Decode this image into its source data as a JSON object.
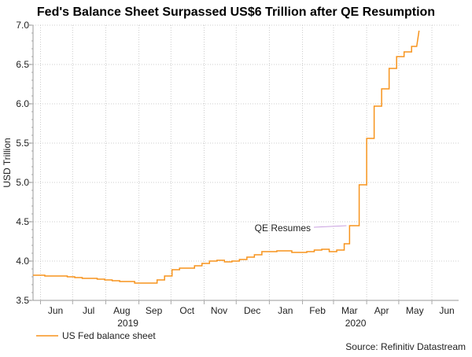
{
  "chart_data": {
    "type": "line",
    "title": "Fed's Balance Sheet Surpassed US$6 Trillion after QE Resumption",
    "ylabel": "USD Trillion",
    "xlabel": "",
    "ylim": [
      3.5,
      7.0
    ],
    "yticks": [
      "3.5",
      "4.0",
      "4.5",
      "5.0",
      "5.5",
      "6.0",
      "6.5",
      "7.0"
    ],
    "xlim": [
      "2019-05-25",
      "2020-06-26"
    ],
    "month_ticks": [
      "2019-06-01",
      "2019-07-01",
      "2019-08-01",
      "2019-09-01",
      "2019-10-01",
      "2019-11-01",
      "2019-12-01",
      "2020-01-01",
      "2020-02-01",
      "2020-03-01",
      "2020-04-01",
      "2020-05-01",
      "2020-06-01"
    ],
    "month_labels": [
      {
        "label": "Jun",
        "date": "2019-06-15"
      },
      {
        "label": "Jul",
        "date": "2019-07-16"
      },
      {
        "label": "Aug",
        "date": "2019-08-16"
      },
      {
        "label": "Sep",
        "date": "2019-09-15"
      },
      {
        "label": "Oct",
        "date": "2019-10-16"
      },
      {
        "label": "Nov",
        "date": "2019-11-15"
      },
      {
        "label": "Dec",
        "date": "2019-12-16"
      },
      {
        "label": "Jan",
        "date": "2020-01-16"
      },
      {
        "label": "Feb",
        "date": "2020-02-15"
      },
      {
        "label": "Mar",
        "date": "2020-03-16"
      },
      {
        "label": "Apr",
        "date": "2020-04-15"
      },
      {
        "label": "May",
        "date": "2020-05-16"
      },
      {
        "label": "Jun",
        "date": "2020-06-15"
      }
    ],
    "year_labels": [
      {
        "label": "2019",
        "date": "2019-09-01"
      },
      {
        "label": "2020",
        "date": "2020-04-01"
      }
    ],
    "grid": true,
    "series": [
      {
        "name": "US Fed balance sheet",
        "color": "#f7941d",
        "x": [
          "2019-05-22",
          "2019-05-29",
          "2019-06-05",
          "2019-06-12",
          "2019-06-19",
          "2019-06-26",
          "2019-07-03",
          "2019-07-10",
          "2019-07-17",
          "2019-07-24",
          "2019-07-31",
          "2019-08-07",
          "2019-08-14",
          "2019-08-21",
          "2019-08-28",
          "2019-09-04",
          "2019-09-11",
          "2019-09-18",
          "2019-09-25",
          "2019-10-02",
          "2019-10-09",
          "2019-10-16",
          "2019-10-23",
          "2019-10-30",
          "2019-11-06",
          "2019-11-13",
          "2019-11-20",
          "2019-11-27",
          "2019-12-04",
          "2019-12-11",
          "2019-12-18",
          "2019-12-25",
          "2020-01-01",
          "2020-01-08",
          "2020-01-15",
          "2020-01-22",
          "2020-01-29",
          "2020-02-05",
          "2020-02-12",
          "2020-02-19",
          "2020-02-26",
          "2020-03-04",
          "2020-03-11",
          "2020-03-16",
          "2020-03-25",
          "2020-04-01",
          "2020-04-08",
          "2020-04-15",
          "2020-04-22",
          "2020-04-29",
          "2020-05-06",
          "2020-05-13",
          "2020-05-20"
        ],
        "values": [
          3.82,
          3.82,
          3.81,
          3.81,
          3.81,
          3.8,
          3.79,
          3.78,
          3.78,
          3.77,
          3.76,
          3.75,
          3.74,
          3.74,
          3.72,
          3.72,
          3.72,
          3.76,
          3.81,
          3.89,
          3.91,
          3.91,
          3.94,
          3.97,
          4.0,
          4.01,
          3.99,
          4.0,
          4.02,
          4.05,
          4.08,
          4.12,
          4.12,
          4.13,
          4.13,
          4.11,
          4.11,
          4.12,
          4.14,
          4.15,
          4.12,
          4.14,
          4.22,
          4.45,
          4.97,
          5.56,
          5.97,
          6.19,
          6.45,
          6.6,
          6.66,
          6.73,
          6.93
        ]
      }
    ],
    "annotations": [
      {
        "text": "QE Resumes",
        "date": "2020-03-16",
        "value": 4.45
      }
    ],
    "legend": {
      "position": "bottom-left",
      "label": "US Fed balance sheet"
    },
    "source": "Source: Refinitiv Datastream"
  }
}
